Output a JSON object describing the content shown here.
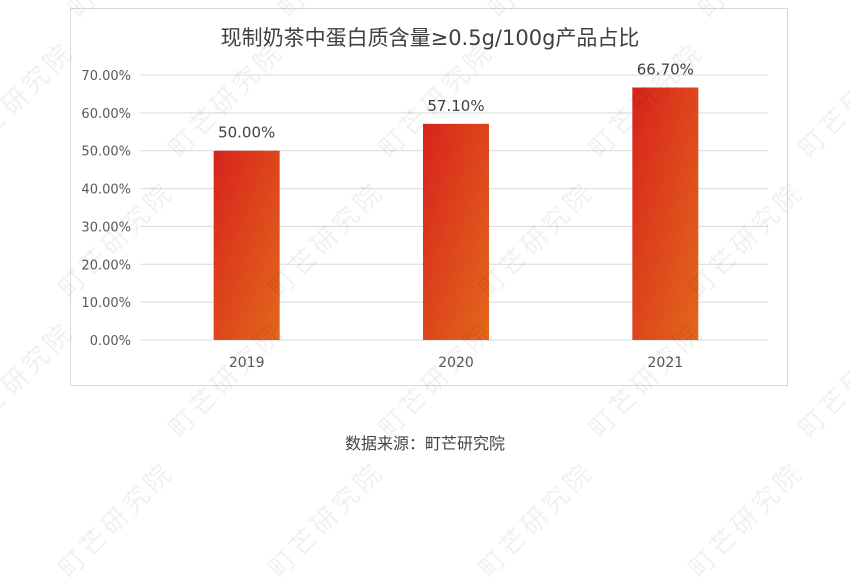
{
  "chart_data": {
    "type": "bar",
    "title": "现制奶茶中蛋白质含量≥0.5g/100g产品占比",
    "categories": [
      "2019",
      "2020",
      "2021"
    ],
    "values": [
      50.0,
      57.1,
      66.7
    ],
    "data_labels": [
      "50.00%",
      "57.10%",
      "66.70%"
    ],
    "yticks": [
      "0.00%",
      "10.00%",
      "20.00%",
      "30.00%",
      "40.00%",
      "50.00%",
      "60.00%",
      "70.00%"
    ],
    "ylim": [
      0,
      70
    ],
    "grid": true,
    "colors": {
      "gradient_start": "#d8231d",
      "gradient_end": "#e2681b"
    }
  },
  "source": "数据来源：町芒研究院",
  "watermark": "町芒研究院"
}
